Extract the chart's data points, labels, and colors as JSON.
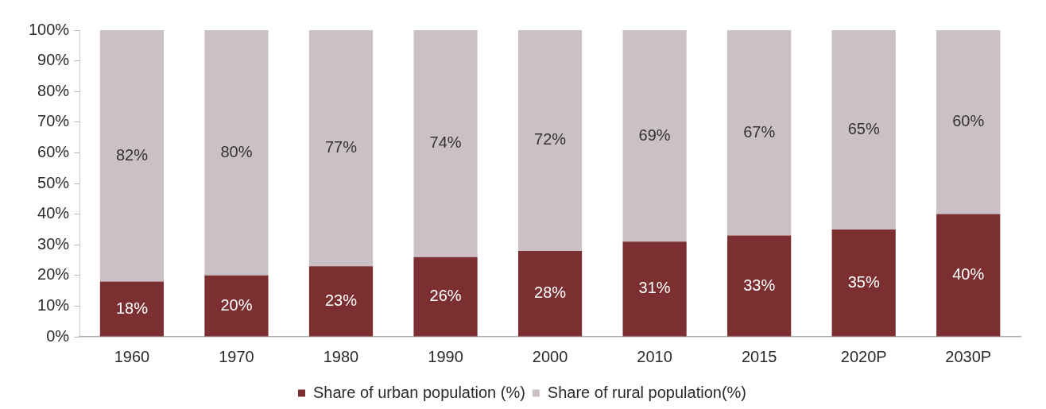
{
  "chart_data": {
    "type": "bar",
    "stacked": true,
    "categories": [
      "1960",
      "1970",
      "1980",
      "1990",
      "2000",
      "2010",
      "2015",
      "2020P",
      "2030P"
    ],
    "series": [
      {
        "name": "Share of urban population (%)",
        "color": "#7b2f30",
        "values": [
          18,
          20,
          23,
          26,
          28,
          31,
          33,
          35,
          40
        ],
        "value_labels": [
          "18%",
          "20%",
          "23%",
          "26%",
          "28%",
          "31%",
          "33%",
          "35%",
          "40%"
        ]
      },
      {
        "name": "Share of rural population(%)",
        "color": "#cbc1c4",
        "values": [
          82,
          80,
          77,
          74,
          72,
          69,
          67,
          65,
          60
        ],
        "value_labels": [
          "82%",
          "80%",
          "77%",
          "74%",
          "72%",
          "69%",
          "67%",
          "65%",
          "60%"
        ]
      }
    ],
    "ylim": [
      0,
      100
    ],
    "yticks": [
      {
        "value": 0,
        "label": "0%"
      },
      {
        "value": 10,
        "label": "10%"
      },
      {
        "value": 20,
        "label": "20%"
      },
      {
        "value": 30,
        "label": "30%"
      },
      {
        "value": 40,
        "label": "40%"
      },
      {
        "value": 50,
        "label": "50%"
      },
      {
        "value": 60,
        "label": "60%"
      },
      {
        "value": 70,
        "label": "70%"
      },
      {
        "value": 80,
        "label": "80%"
      },
      {
        "value": 90,
        "label": "90%"
      },
      {
        "value": 100,
        "label": "100%"
      }
    ],
    "grid": false,
    "legend": "bottom"
  }
}
